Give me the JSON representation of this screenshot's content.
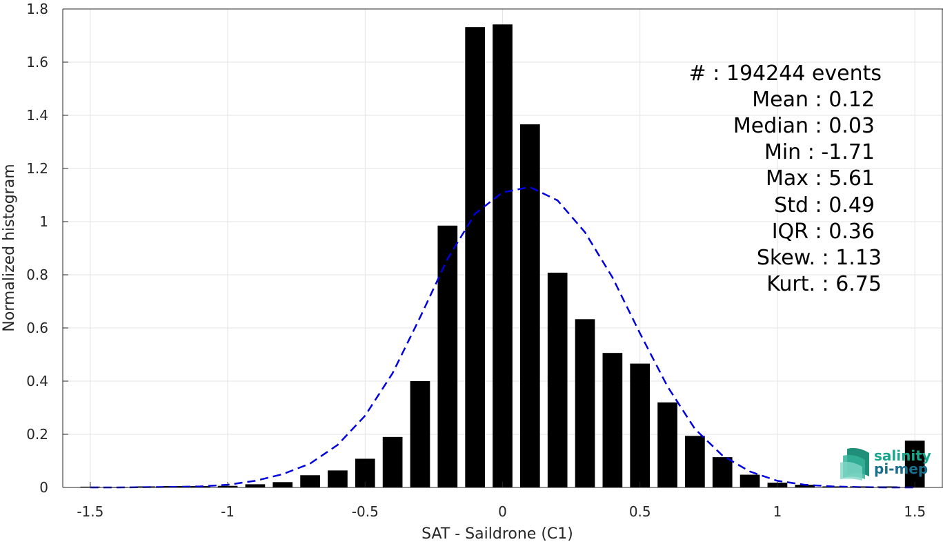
{
  "chart_data": {
    "type": "bar",
    "title": "",
    "xlabel": "SAT - Saildrone (C1)",
    "ylabel": "Normalized histogram",
    "xlim": [
      -1.6,
      1.6
    ],
    "ylim": [
      0,
      1.8
    ],
    "xticks": [
      -1.5,
      -1,
      -0.5,
      0,
      0.5,
      1,
      1.5
    ],
    "xtick_labels": [
      "-1.5",
      "-1",
      "-0.5",
      "0",
      "0.5",
      "1",
      "1.5"
    ],
    "yticks": [
      0,
      0.2,
      0.4,
      0.6,
      0.8,
      1,
      1.2,
      1.4,
      1.6,
      1.8
    ],
    "ytick_labels": [
      "0",
      "0.2",
      "0.4",
      "0.6",
      "0.8",
      "1",
      "1.2",
      "1.4",
      "1.6",
      "1.8"
    ],
    "grid": true,
    "bar_color": "#000000",
    "bin_width": 0.1,
    "bars": {
      "x": [
        -1.5,
        -1.4,
        -1.3,
        -1.2,
        -1.1,
        -1.0,
        -0.9,
        -0.8,
        -0.7,
        -0.6,
        -0.5,
        -0.4,
        -0.3,
        -0.2,
        -0.1,
        0.0,
        0.1,
        0.2,
        0.3,
        0.4,
        0.5,
        0.6,
        0.7,
        0.8,
        0.9,
        1.0,
        1.1,
        1.2,
        1.3,
        1.4,
        1.5
      ],
      "values": [
        0.003,
        0.002,
        0.004,
        0.005,
        0.005,
        0.006,
        0.012,
        0.02,
        0.046,
        0.064,
        0.108,
        0.19,
        0.4,
        0.985,
        1.732,
        1.742,
        1.366,
        0.808,
        0.633,
        0.506,
        0.466,
        0.32,
        0.194,
        0.114,
        0.048,
        0.018,
        0.01,
        0.004,
        0.004,
        0.004,
        0.176
      ]
    },
    "fit_curve": {
      "style": "dashed",
      "color": "#0000dd",
      "x": [
        -1.5,
        -1.4,
        -1.3,
        -1.2,
        -1.1,
        -1.0,
        -0.9,
        -0.8,
        -0.7,
        -0.6,
        -0.5,
        -0.4,
        -0.3,
        -0.2,
        -0.1,
        0.0,
        0.1,
        0.2,
        0.3,
        0.4,
        0.5,
        0.6,
        0.7,
        0.8,
        0.9,
        1.0,
        1.1,
        1.2,
        1.3,
        1.4,
        1.5
      ],
      "values": [
        0.0,
        0.0,
        0.001,
        0.002,
        0.004,
        0.01,
        0.025,
        0.05,
        0.09,
        0.16,
        0.27,
        0.43,
        0.64,
        0.86,
        1.03,
        1.11,
        1.13,
        1.08,
        0.96,
        0.79,
        0.58,
        0.38,
        0.22,
        0.12,
        0.06,
        0.025,
        0.01,
        0.004,
        0.001,
        0.0,
        0.0
      ]
    },
    "stats": {
      "events": "#  : 194244 events",
      "mean": "Mean : 0.12",
      "median": "Median : 0.03",
      "min": "Min : -1.71",
      "max": "Max : 5.61",
      "std": "Std : 0.49",
      "iqr": "IQR : 0.36",
      "skew": "Skew. : 1.13",
      "kurt": "Kurt. : 6.75"
    },
    "logo": {
      "line1": "salinity",
      "line2": "pi-mep",
      "color": "#1aa68c"
    }
  }
}
